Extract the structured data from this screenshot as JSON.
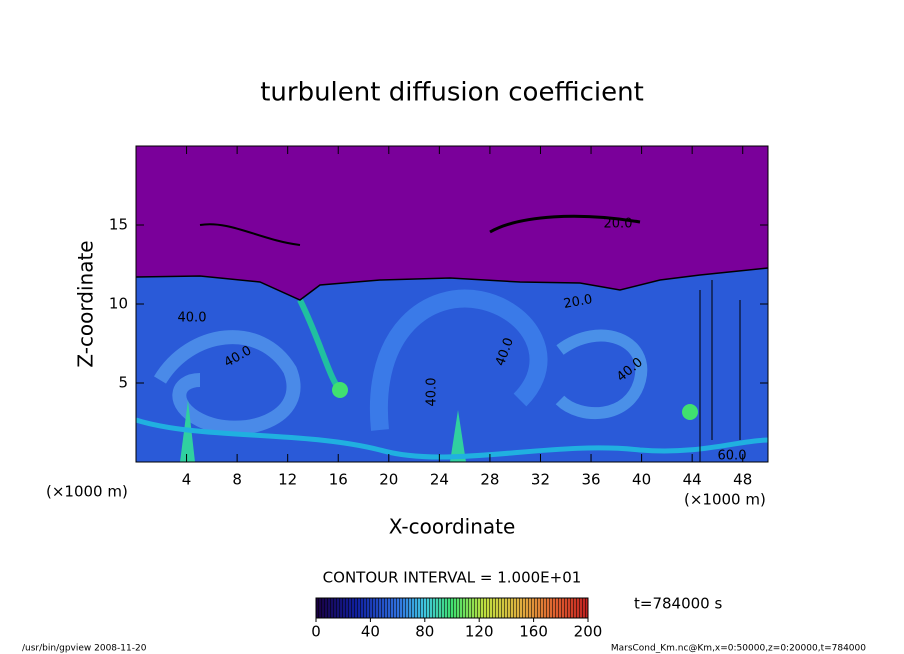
{
  "chart_data": {
    "type": "contour",
    "title": "turbulent diffusion coefficient",
    "xlabel": "X-coordinate",
    "ylabel": "Z-coordinate",
    "x_unit": "(×1000 m)",
    "y_unit": "(×1000 m)",
    "xlim": [
      0,
      50
    ],
    "xticks": [
      4,
      8,
      12,
      16,
      20,
      24,
      28,
      32,
      36,
      40,
      44,
      48
    ],
    "ylim": [
      0,
      20
    ],
    "yticks": [
      5,
      10,
      15
    ],
    "contour_labels": [
      "40.0",
      "40.0",
      "40.0",
      "40.0",
      "20.0",
      "20.0",
      "40.0",
      "60.0"
    ],
    "contour_interval": "CONTOUR INTERVAL = 1.000E+01",
    "clim": [
      0,
      200
    ],
    "cticks": [
      0,
      40,
      80,
      120,
      160,
      200
    ],
    "time_label": "t=784000 s",
    "footer_left": "/usr/bin/gpview  2008-11-20",
    "footer_right": "MarsCond_Km.nc@Km,x=0:50000,z=0:20000,t=784000"
  }
}
